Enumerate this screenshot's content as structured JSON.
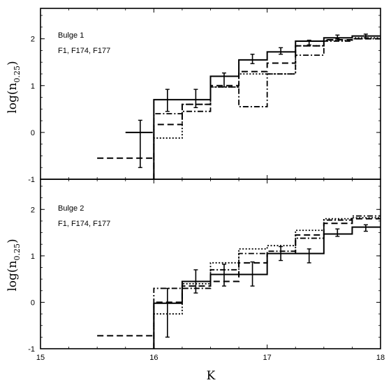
{
  "chart_data": [
    {
      "type": "line",
      "title": "",
      "annotation_lines": [
        "Bulge 1",
        "F1, F174, F177"
      ],
      "xlabel": "K",
      "ylabel_main": "log(n",
      "ylabel_sub": "0.25",
      "ylabel_close": ")",
      "xlim": [
        15,
        18
      ],
      "ylim": [
        -1,
        2.65
      ],
      "yticks": [
        -1,
        0,
        1,
        2
      ],
      "grid": false,
      "steps": [
        {
          "style": "solid",
          "edges": [
            16,
            16.25,
            16.5,
            16.75,
            17,
            17.25,
            17.5,
            17.75,
            18
          ],
          "values": [
            0.7,
            0.7,
            1.2,
            1.55,
            1.72,
            1.95,
            2.02,
            2.06
          ]
        },
        {
          "style": "dashed",
          "edges": [
            16,
            16.25,
            16.5,
            16.75,
            17,
            17.25,
            17.5,
            17.75,
            18
          ],
          "values": [
            0.17,
            0.6,
            1.0,
            1.3,
            1.48,
            1.85,
            1.98,
            2.0
          ]
        },
        {
          "style": "dotted",
          "edges": [
            16,
            16.25,
            16.5,
            16.75,
            17,
            17.25,
            17.5,
            17.75,
            18
          ],
          "values": [
            -0.12,
            0.6,
            0.97,
            1.25,
            1.25,
            1.85,
            1.97,
            2.02
          ]
        },
        {
          "style": "dashdot",
          "edges": [
            16,
            16.25,
            16.5,
            16.75,
            17,
            17.25,
            17.5,
            17.75,
            18
          ],
          "values": [
            0.4,
            0.45,
            0.97,
            0.55,
            1.25,
            1.65,
            1.95,
            2.0
          ]
        }
      ],
      "extra_segments": [
        {
          "style": "dashed",
          "x": [
            15.5,
            16
          ],
          "y": -0.55
        },
        {
          "style": "solid",
          "x": [
            15.75,
            15.99
          ],
          "y": 0
        }
      ],
      "errorbars": [
        {
          "x": 15.88,
          "y": 0,
          "low": -0.75,
          "high": 0.26
        },
        {
          "x": 16.12,
          "y": 0.66,
          "low": 0.45,
          "high": 0.92
        },
        {
          "x": 16.37,
          "y": 0.72,
          "low": 0.53,
          "high": 0.92
        },
        {
          "x": 16.62,
          "y": 1.12,
          "low": 0.97,
          "high": 1.27
        },
        {
          "x": 16.87,
          "y": 1.57,
          "low": 1.47,
          "high": 1.67
        },
        {
          "x": 17.12,
          "y": 1.74,
          "low": 1.67,
          "high": 1.81
        },
        {
          "x": 17.37,
          "y": 1.92,
          "low": 1.87,
          "high": 1.97
        },
        {
          "x": 17.62,
          "y": 2.04,
          "low": 2.0,
          "high": 2.08
        },
        {
          "x": 17.87,
          "y": 2.06,
          "low": 2.02,
          "high": 2.1
        }
      ]
    },
    {
      "type": "line",
      "title": "",
      "annotation_lines": [
        "Bulge 2",
        "F1, F174, F177"
      ],
      "xlabel": "K",
      "ylabel_main": "log(n",
      "ylabel_sub": "0.25",
      "ylabel_close": ")",
      "xlim": [
        15,
        18
      ],
      "ylim": [
        -1,
        2.65
      ],
      "yticks": [
        -1,
        0,
        1,
        2
      ],
      "xticks": [
        15,
        16,
        17,
        18
      ],
      "grid": false,
      "steps": [
        {
          "style": "solid",
          "edges": [
            16,
            16.25,
            16.5,
            16.75,
            17,
            17.25,
            17.5,
            17.75,
            18
          ],
          "values": [
            -0.02,
            0.45,
            0.6,
            0.6,
            1.05,
            1.05,
            1.47,
            1.62
          ]
        },
        {
          "style": "dashed",
          "edges": [
            16,
            16.25,
            16.5,
            16.75,
            17,
            17.25,
            17.5,
            17.75,
            18
          ],
          "values": [
            0.0,
            0.35,
            0.45,
            0.85,
            1.05,
            1.45,
            1.7,
            1.8
          ]
        },
        {
          "style": "dotted",
          "edges": [
            16,
            16.25,
            16.5,
            16.75,
            17,
            17.25,
            17.5,
            17.75,
            18
          ],
          "values": [
            -0.25,
            0.4,
            0.85,
            1.15,
            1.22,
            1.55,
            1.8,
            1.82
          ]
        },
        {
          "style": "dashdot",
          "edges": [
            16,
            16.25,
            16.5,
            16.75,
            17,
            17.25,
            17.5,
            17.75,
            18
          ],
          "values": [
            0.3,
            0.3,
            0.7,
            1.05,
            1.1,
            1.38,
            1.77,
            1.86
          ]
        }
      ],
      "extra_segments": [
        {
          "style": "dashed",
          "x": [
            15.5,
            16
          ],
          "y": -0.72
        }
      ],
      "errorbars": [
        {
          "x": 16.12,
          "y": -0.02,
          "low": -0.75,
          "high": 0.3
        },
        {
          "x": 16.37,
          "y": 0.47,
          "low": 0.2,
          "high": 0.7
        },
        {
          "x": 16.62,
          "y": 0.6,
          "low": 0.35,
          "high": 0.82
        },
        {
          "x": 16.87,
          "y": 0.6,
          "low": 0.35,
          "high": 0.87
        },
        {
          "x": 17.12,
          "y": 1.05,
          "low": 0.9,
          "high": 1.2
        },
        {
          "x": 17.37,
          "y": 1.0,
          "low": 0.85,
          "high": 1.15
        },
        {
          "x": 17.62,
          "y": 1.5,
          "low": 1.42,
          "high": 1.58
        },
        {
          "x": 17.87,
          "y": 1.6,
          "low": 1.53,
          "high": 1.67
        }
      ]
    }
  ]
}
